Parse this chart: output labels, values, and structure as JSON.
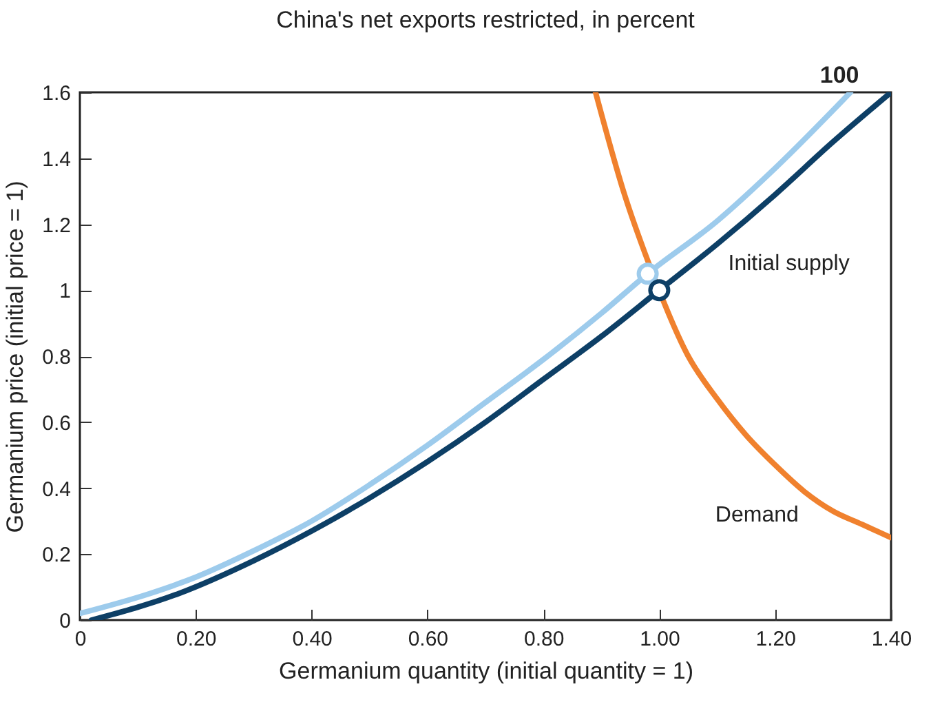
{
  "chart_data": {
    "type": "line",
    "title": "China's net exports restricted, in percent",
    "xlabel": "Germanium quantity (initial quantity = 1)",
    "ylabel": "Germanium price (initial price = 1)",
    "xlim": [
      0,
      1.4
    ],
    "ylim": [
      0,
      1.6
    ],
    "xticks": [
      0,
      {
        "value": 0.2,
        "label": "0.20"
      },
      {
        "value": 0.4,
        "label": "0.40"
      },
      {
        "value": 0.6,
        "label": "0.60"
      },
      {
        "value": 0.8,
        "label": "0.80"
      },
      {
        "value": 1,
        "label": "1.00"
      },
      {
        "value": 1.2,
        "label": "1.20"
      },
      {
        "value": 1.4,
        "label": "1.40"
      }
    ],
    "yticks": [
      0,
      0.2,
      0.4,
      0.6,
      0.8,
      1,
      1.2,
      1.4,
      1.6
    ],
    "series": [
      {
        "name": "100",
        "color": "#9dcbec",
        "x": [
          0,
          0.12,
          0.2,
          0.3,
          0.4,
          0.5,
          0.6,
          0.7,
          0.8,
          0.9,
          0.98,
          1.1,
          1.2,
          1.33
        ],
        "values": [
          0.02,
          0.08,
          0.13,
          0.21,
          0.3,
          0.41,
          0.53,
          0.66,
          0.79,
          0.93,
          1.05,
          1.21,
          1.37,
          1.6
        ]
      },
      {
        "name": "Initial supply",
        "color": "#0d3f66",
        "x": [
          0.02,
          0.17,
          0.3,
          0.4,
          0.5,
          0.6,
          0.7,
          0.8,
          0.9,
          1,
          1.1,
          1.2,
          1.3,
          1.4
        ],
        "values": [
          0,
          0.08,
          0.18,
          0.27,
          0.37,
          0.48,
          0.6,
          0.73,
          0.86,
          1,
          1.14,
          1.29,
          1.45,
          1.6
        ]
      },
      {
        "name": "Demand",
        "color": "#f0812e",
        "x": [
          0.89,
          0.94,
          0.98,
          1.05,
          1.1,
          1.15,
          1.2,
          1.25,
          1.3,
          1.35,
          1.4
        ],
        "values": [
          1.6,
          1.29,
          1.09,
          0.8,
          0.67,
          0.56,
          0.47,
          0.39,
          0.33,
          0.29,
          0.25
        ]
      },
      {
        "type": "scatter",
        "marker": "circle",
        "color": "#9dcbec",
        "x": [
          0.98
        ],
        "values": [
          1.05
        ]
      },
      {
        "type": "scatter",
        "marker": "circle",
        "color": "#0d3f66",
        "x": [
          1
        ],
        "values": [
          1
        ]
      }
    ]
  }
}
